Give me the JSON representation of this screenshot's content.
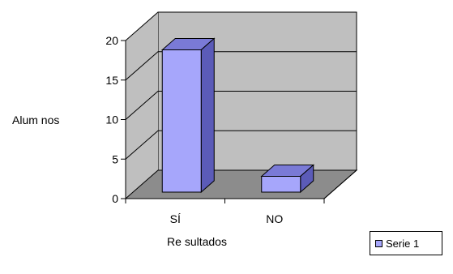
{
  "chart_data": {
    "type": "bar",
    "title": "",
    "xlabel": "Re sultados",
    "ylabel": "Alum nos",
    "categories": [
      "SÍ",
      "NO"
    ],
    "series": [
      {
        "name": "Serie 1",
        "values": [
          18,
          2
        ]
      }
    ],
    "yticks": [
      "0",
      "5",
      "10",
      "15",
      "20"
    ],
    "ylim": [
      0,
      20
    ],
    "grid": true,
    "legend": "right",
    "colors": {
      "bar_front": "#a6a6fb",
      "bar_side": "#5b5bb8",
      "bar_top": "#7a7ad6",
      "back_wall": "#bfbfbf",
      "floor": "#8c8c8c",
      "gridline": "#000000"
    }
  }
}
